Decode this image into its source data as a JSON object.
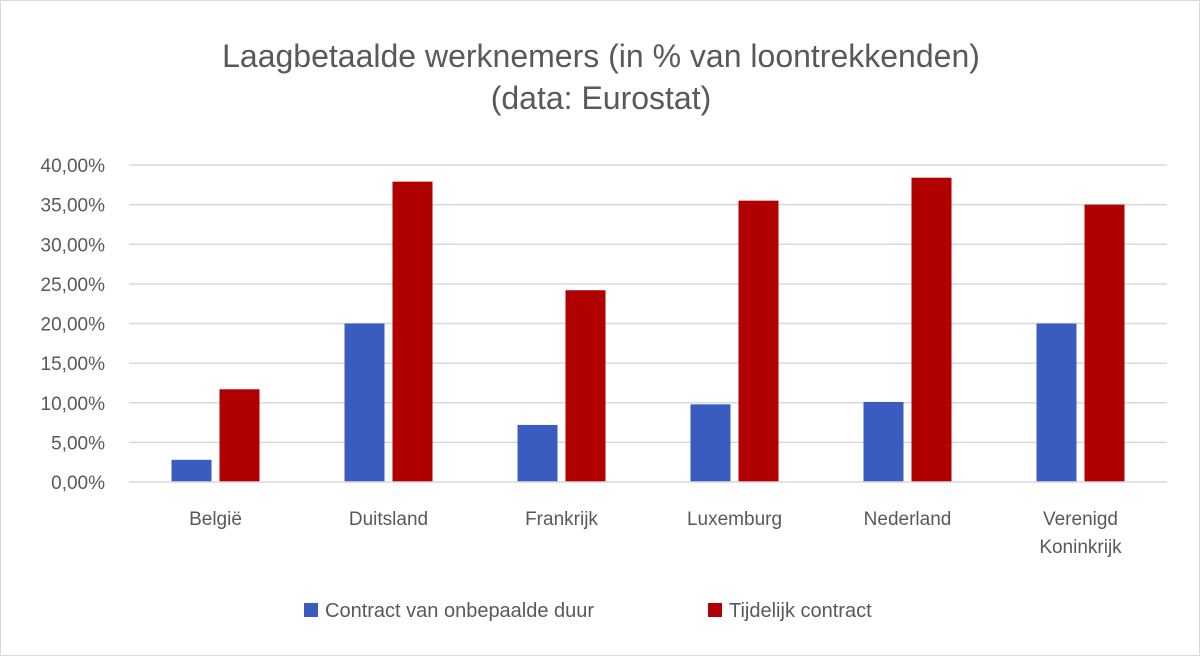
{
  "chart_data": {
    "type": "bar",
    "title": [
      "Laagbetaalde werknemers (in % van loontrekkenden)",
      "(data: Eurostat)"
    ],
    "categories": [
      [
        "België"
      ],
      [
        "Duitsland"
      ],
      [
        "Frankrijk"
      ],
      [
        "Luxemburg"
      ],
      [
        "Nederland"
      ],
      [
        "Verenigd",
        "Koninkrijk"
      ]
    ],
    "series": [
      {
        "name": "Contract van onbepaalde duur",
        "color": "#3a5bbf",
        "values": [
          2.8,
          20.0,
          7.2,
          9.8,
          10.1,
          20.0
        ]
      },
      {
        "name": "Tijdelijk contract",
        "color": "#b00000",
        "values": [
          11.7,
          37.9,
          24.2,
          35.5,
          38.4,
          35.0
        ]
      }
    ],
    "yticks": [
      "0,00%",
      "5,00%",
      "10,00%",
      "15,00%",
      "20,00%",
      "25,00%",
      "30,00%",
      "35,00%",
      "40,00%"
    ],
    "ylim": [
      0,
      40
    ],
    "grid": true,
    "legend_position": "bottom"
  }
}
